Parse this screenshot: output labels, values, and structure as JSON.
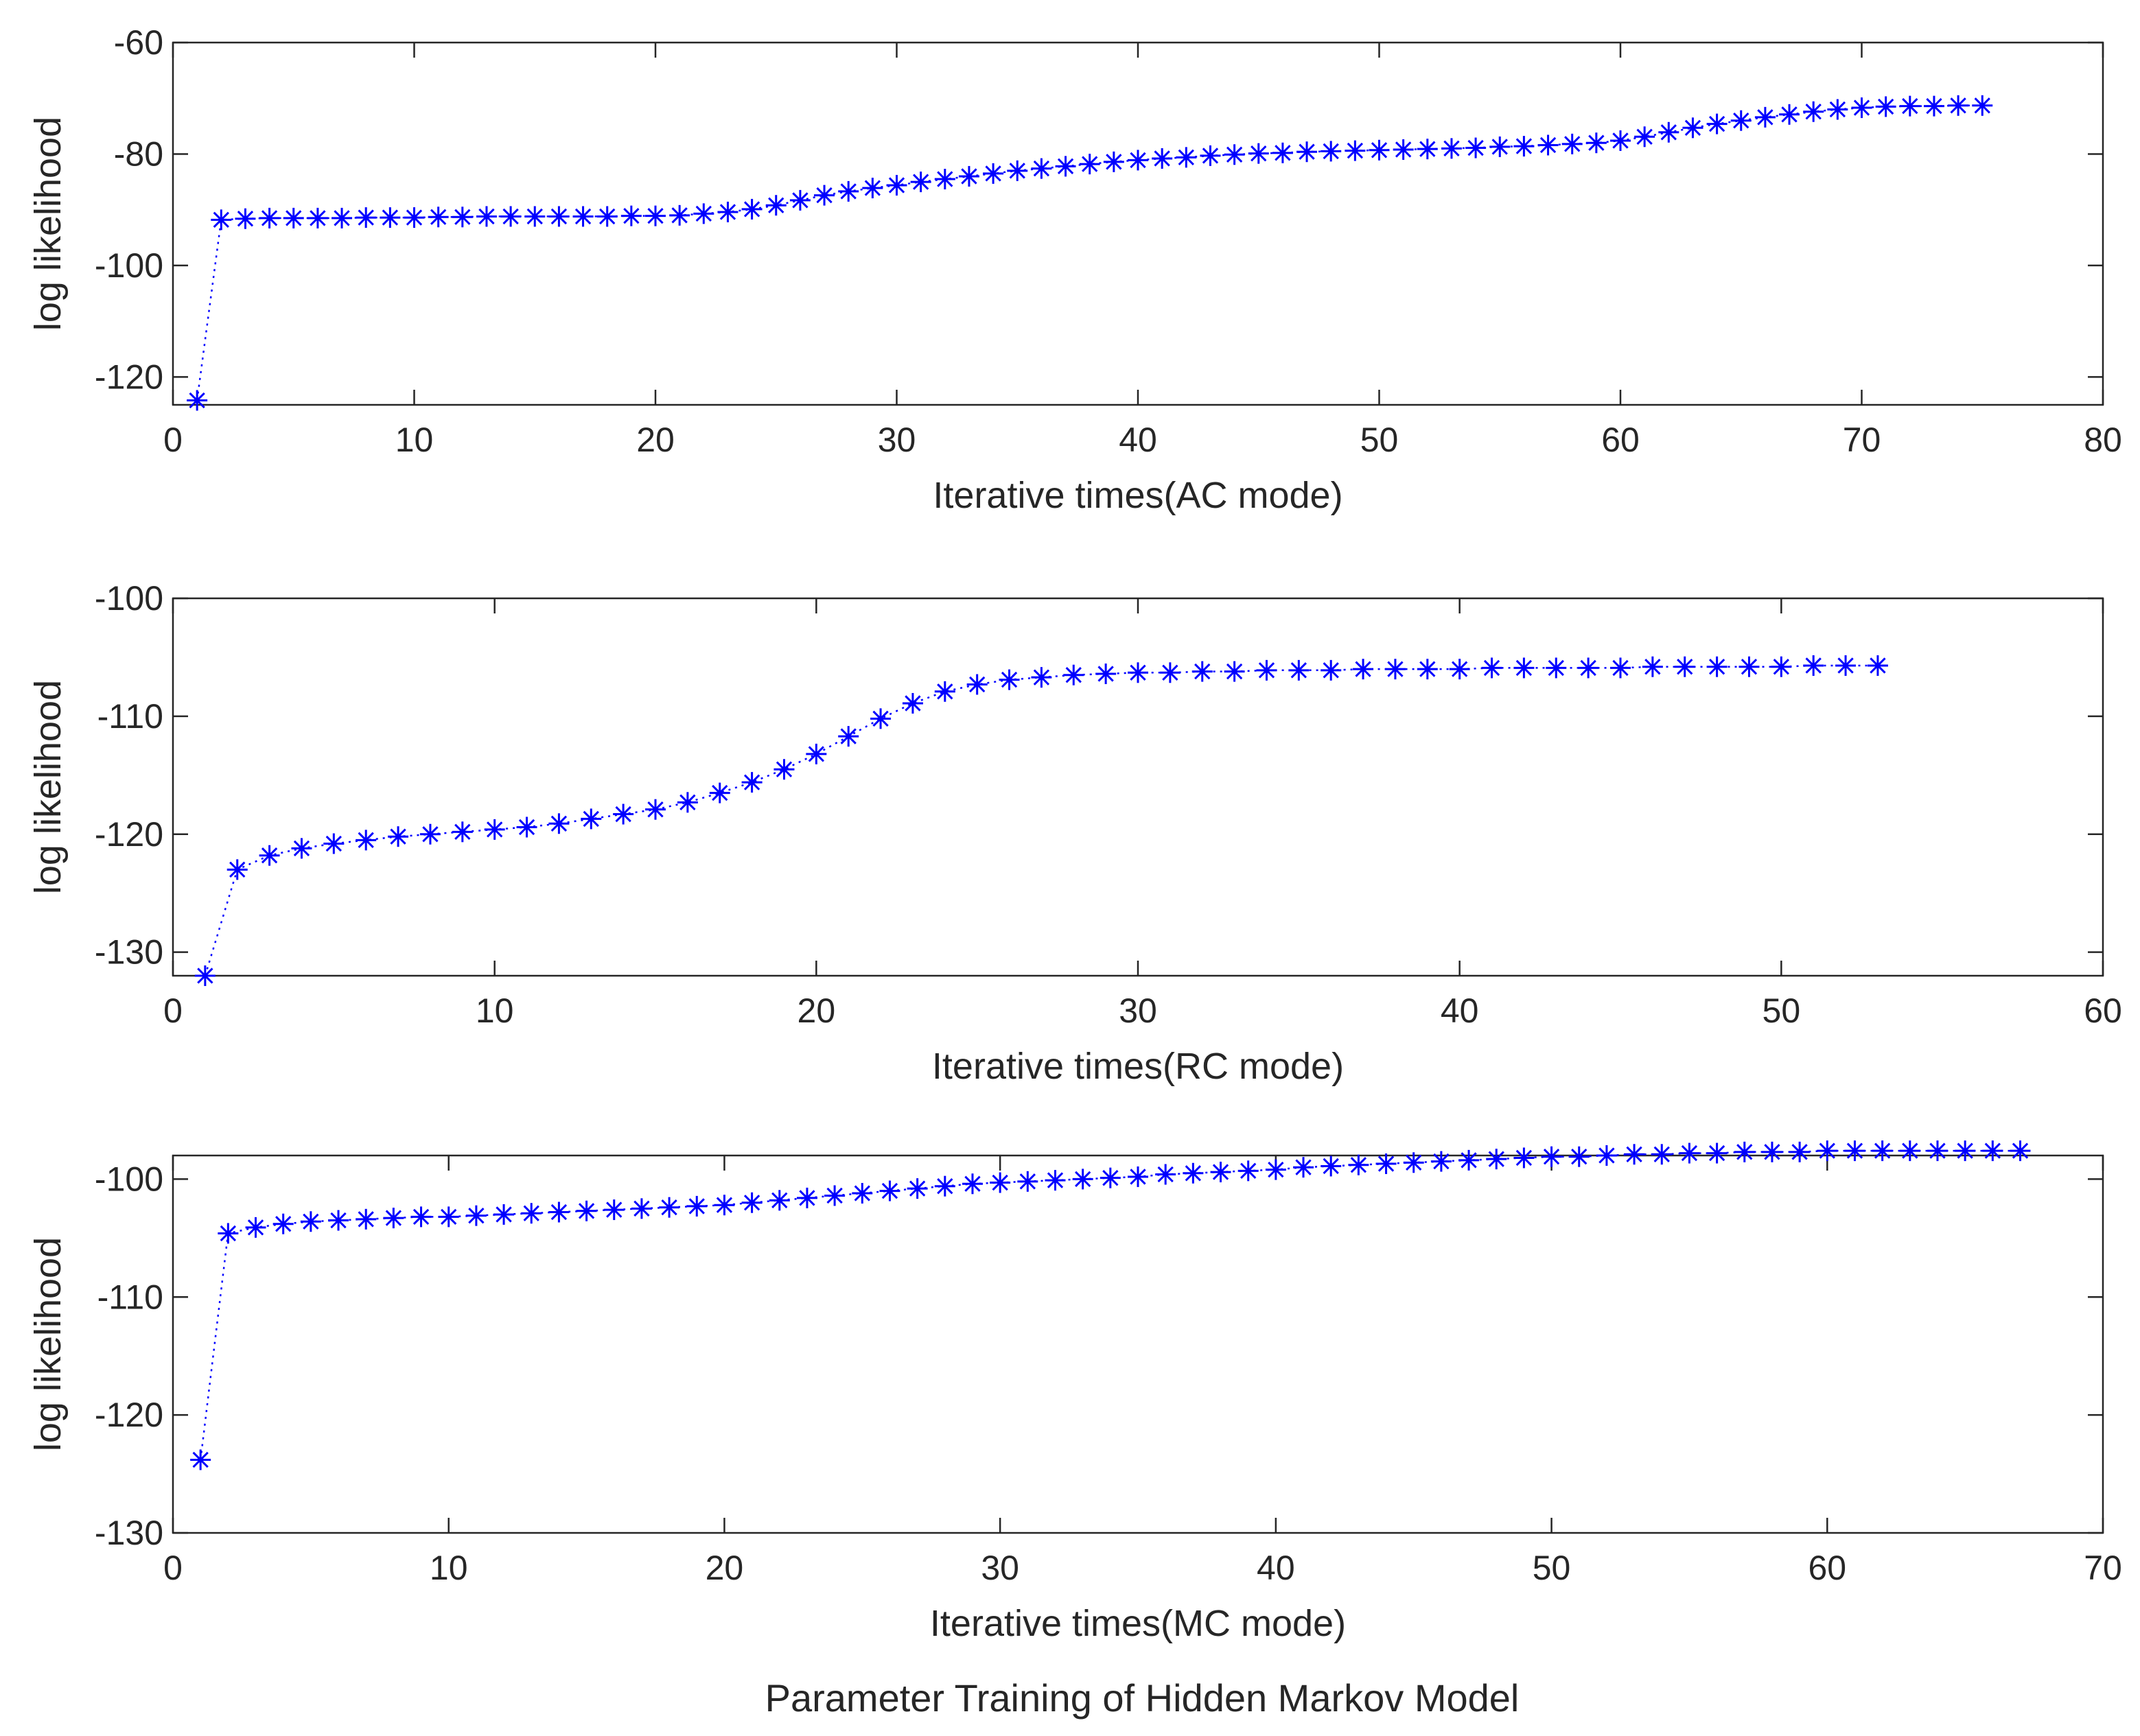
{
  "figure": {
    "caption": "Parameter Training of Hidden Markov Model"
  },
  "chart_data": [
    {
      "type": "line",
      "marker": "asterisk",
      "line_style": "dotted",
      "color": "#0000ff",
      "title": "",
      "xlabel": "Iterative times(AC mode)",
      "ylabel": "log likelihood",
      "xlim": [
        0,
        80
      ],
      "ylim": [
        -125,
        -60
      ],
      "xticks": [
        0,
        10,
        20,
        30,
        40,
        50,
        60,
        70,
        80
      ],
      "yticks": [
        -120,
        -100,
        -80,
        -60
      ],
      "grid": false,
      "x": [
        1,
        2,
        3,
        4,
        5,
        6,
        7,
        8,
        9,
        10,
        11,
        12,
        13,
        14,
        15,
        16,
        17,
        18,
        19,
        20,
        21,
        22,
        23,
        24,
        25,
        26,
        27,
        28,
        29,
        30,
        31,
        32,
        33,
        34,
        35,
        36,
        37,
        38,
        39,
        40,
        41,
        42,
        43,
        44,
        45,
        46,
        47,
        48,
        49,
        50,
        51,
        52,
        53,
        54,
        55,
        56,
        57,
        58,
        59,
        60,
        61,
        62,
        63,
        64,
        65,
        66,
        67,
        68,
        69,
        70,
        71,
        72,
        73,
        74,
        75
      ],
      "y": [
        -124.2,
        -91.8,
        -91.6,
        -91.5,
        -91.5,
        -91.5,
        -91.5,
        -91.4,
        -91.4,
        -91.4,
        -91.3,
        -91.3,
        -91.2,
        -91.2,
        -91.2,
        -91.2,
        -91.2,
        -91.2,
        -91.1,
        -91.1,
        -91.0,
        -90.7,
        -90.4,
        -89.9,
        -89.2,
        -88.3,
        -87.4,
        -86.7,
        -86.1,
        -85.6,
        -85.0,
        -84.5,
        -84.0,
        -83.5,
        -83.0,
        -82.6,
        -82.2,
        -81.8,
        -81.4,
        -81.1,
        -80.8,
        -80.6,
        -80.3,
        -80.1,
        -79.9,
        -79.8,
        -79.6,
        -79.5,
        -79.4,
        -79.3,
        -79.2,
        -79.1,
        -79.0,
        -78.9,
        -78.7,
        -78.6,
        -78.4,
        -78.2,
        -78.0,
        -77.6,
        -76.9,
        -76.1,
        -75.3,
        -74.6,
        -74.0,
        -73.4,
        -72.9,
        -72.4,
        -72.0,
        -71.7,
        -71.5,
        -71.4,
        -71.4,
        -71.3,
        -71.3
      ]
    },
    {
      "type": "line",
      "marker": "asterisk",
      "line_style": "dotted",
      "color": "#0000ff",
      "title": "",
      "xlabel": "Iterative times(RC mode)",
      "ylabel": "log likelihood",
      "xlim": [
        0,
        60
      ],
      "ylim": [
        -132,
        -100
      ],
      "xticks": [
        0,
        10,
        20,
        30,
        40,
        50,
        60
      ],
      "yticks": [
        -130,
        -120,
        -110,
        -100
      ],
      "grid": false,
      "x": [
        1,
        2,
        3,
        4,
        5,
        6,
        7,
        8,
        9,
        10,
        11,
        12,
        13,
        14,
        15,
        16,
        17,
        18,
        19,
        20,
        21,
        22,
        23,
        24,
        25,
        26,
        27,
        28,
        29,
        30,
        31,
        32,
        33,
        34,
        35,
        36,
        37,
        38,
        39,
        40,
        41,
        42,
        43,
        44,
        45,
        46,
        47,
        48,
        49,
        50,
        51,
        52,
        53
      ],
      "y": [
        -132.0,
        -123.0,
        -121.8,
        -121.2,
        -120.8,
        -120.5,
        -120.2,
        -120.0,
        -119.8,
        -119.6,
        -119.4,
        -119.1,
        -118.7,
        -118.3,
        -117.9,
        -117.3,
        -116.5,
        -115.6,
        -114.5,
        -113.2,
        -111.7,
        -110.2,
        -108.9,
        -107.9,
        -107.3,
        -106.9,
        -106.7,
        -106.5,
        -106.4,
        -106.3,
        -106.3,
        -106.2,
        -106.2,
        -106.1,
        -106.1,
        -106.1,
        -106.0,
        -106.0,
        -106.0,
        -106.0,
        -105.9,
        -105.9,
        -105.9,
        -105.9,
        -105.9,
        -105.8,
        -105.8,
        -105.8,
        -105.8,
        -105.8,
        -105.7,
        -105.7,
        -105.7
      ]
    },
    {
      "type": "line",
      "marker": "asterisk",
      "line_style": "dotted",
      "color": "#0000ff",
      "title": "",
      "xlabel": "Iterative times(MC mode)",
      "ylabel": "log likelihood",
      "xlim": [
        0,
        70
      ],
      "ylim": [
        -130,
        -98
      ],
      "xticks": [
        0,
        10,
        20,
        30,
        40,
        50,
        60,
        70
      ],
      "yticks": [
        -130,
        -120,
        -110,
        -100
      ],
      "grid": false,
      "x": [
        1,
        2,
        3,
        4,
        5,
        6,
        7,
        8,
        9,
        10,
        11,
        12,
        13,
        14,
        15,
        16,
        17,
        18,
        19,
        20,
        21,
        22,
        23,
        24,
        25,
        26,
        27,
        28,
        29,
        30,
        31,
        32,
        33,
        34,
        35,
        36,
        37,
        38,
        39,
        40,
        41,
        42,
        43,
        44,
        45,
        46,
        47,
        48,
        49,
        50,
        51,
        52,
        53,
        54,
        55,
        56,
        57,
        58,
        59,
        60,
        61,
        62,
        63,
        64,
        65,
        66,
        67
      ],
      "y": [
        -123.8,
        -104.6,
        -104.1,
        -103.8,
        -103.6,
        -103.5,
        -103.4,
        -103.3,
        -103.2,
        -103.2,
        -103.1,
        -103.0,
        -102.9,
        -102.8,
        -102.7,
        -102.6,
        -102.5,
        -102.4,
        -102.3,
        -102.2,
        -102.0,
        -101.8,
        -101.6,
        -101.4,
        -101.2,
        -101.0,
        -100.8,
        -100.6,
        -100.4,
        -100.3,
        -100.2,
        -100.1,
        -100.0,
        -99.9,
        -99.8,
        -99.6,
        -99.5,
        -99.4,
        -99.3,
        -99.2,
        -99.0,
        -98.9,
        -98.8,
        -98.7,
        -98.6,
        -98.5,
        -98.4,
        -98.3,
        -98.2,
        -98.1,
        -98.1,
        -98.0,
        -97.9,
        -97.9,
        -97.8,
        -97.8,
        -97.7,
        -97.7,
        -97.7,
        -97.6,
        -97.6,
        -97.6,
        -97.6,
        -97.6,
        -97.6,
        -97.6,
        -97.6
      ]
    }
  ]
}
